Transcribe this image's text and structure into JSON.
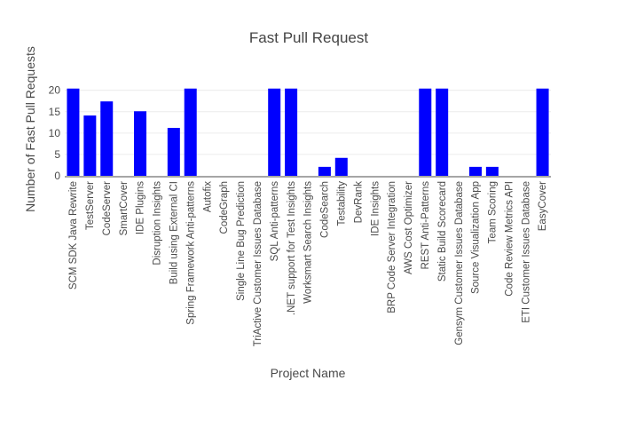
{
  "chart_data": {
    "type": "bar",
    "title": "Fast Pull Request",
    "xlabel": "Project Name",
    "ylabel": "Number of Fast Pull Requests",
    "categories": [
      "SCM SDK Java Rewrite",
      "TestServer",
      "CodeServer",
      "SmartCover",
      "IDE Plugins",
      "Disruption Insights",
      "Build using External CI",
      "Spring Framework Anti-patterns",
      "Autofix",
      "CodeGraph",
      "Single Line Bug Prediction",
      "TriActive Customer Issues Database",
      "SQL Anti-patterns",
      ".NET support for Test Insights",
      "Worksmart Search Insights",
      "CodeSearch",
      "Testability",
      "DevRank",
      "IDE Insights",
      "BRP Code Server Integration",
      "AWS Cost Optimizer",
      "REST Anti-Patterns",
      "Static Build Scorecard",
      "Gensym Customer Issues Database",
      "Source Visualization App",
      "Team Scoring",
      "Code Review Metrics API",
      "ETI Customer Issues Database",
      "EasyCover"
    ],
    "values": [
      20.4,
      14.1,
      17.4,
      0,
      15.1,
      0,
      11.2,
      20.4,
      0,
      0,
      0,
      0,
      20.4,
      20.4,
      0,
      2.1,
      4.2,
      0,
      0,
      0,
      0,
      20.4,
      20.4,
      0,
      2.1,
      2.1,
      0,
      0,
      20.4
    ],
    "yticks": [
      0,
      5,
      10,
      15,
      20
    ],
    "ylim": [
      0,
      21.8
    ],
    "grid": true,
    "legend": "none",
    "colors": {
      "bar": "#0000fe",
      "grid": "#ececec",
      "axis_line": "#a6a6a6",
      "text": "#4a4a4a",
      "title": "#444444",
      "background": "#ffffff"
    }
  }
}
